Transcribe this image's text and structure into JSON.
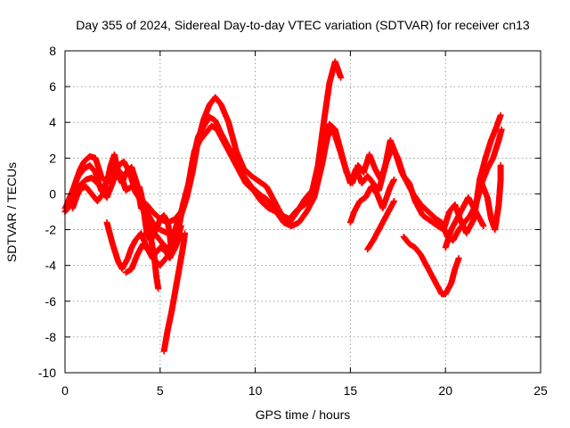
{
  "chart_data": {
    "type": "scatter",
    "title": "Day 355 of 2024, Sidereal Day-to-day VTEC variation (SDTVAR) for receiver cn13",
    "xlabel": "GPS time / hours",
    "ylabel": "SDTVAR / TECUs",
    "xlim": [
      0,
      25
    ],
    "ylim": [
      -10,
      8
    ],
    "xticks": [
      0,
      5,
      10,
      15,
      20,
      25
    ],
    "yticks": [
      -10,
      -8,
      -6,
      -4,
      -2,
      0,
      2,
      4,
      6,
      8
    ],
    "grid": true,
    "marker": "+",
    "color": "#ff0000",
    "series": [
      {
        "name": "track-1",
        "points": [
          [
            0.0,
            -1.0
          ],
          [
            0.3,
            -0.6
          ],
          [
            0.5,
            0.5
          ],
          [
            0.8,
            1.4
          ],
          [
            1.0,
            1.8
          ],
          [
            1.3,
            2.1
          ],
          [
            1.6,
            2.0
          ],
          [
            1.9,
            1.0
          ],
          [
            2.2,
            0.6
          ],
          [
            2.4,
            1.6
          ],
          [
            2.6,
            2.2
          ],
          [
            2.8,
            1.0
          ],
          [
            3.0,
            0.6
          ],
          [
            3.2,
            1.2
          ],
          [
            3.5,
            1.5
          ],
          [
            3.8,
            0.5
          ],
          [
            4.0,
            -0.8
          ],
          [
            4.3,
            -1.0
          ],
          [
            4.6,
            -1.6
          ],
          [
            5.0,
            -2.0
          ],
          [
            5.4,
            -2.2
          ],
          [
            5.8,
            -2.4
          ],
          [
            6.1,
            -1.2
          ],
          [
            6.4,
            -0.2
          ],
          [
            6.7,
            1.2
          ],
          [
            7.0,
            3.0
          ],
          [
            7.3,
            4.2
          ],
          [
            7.6,
            5.0
          ],
          [
            7.9,
            5.4
          ],
          [
            8.2,
            5.0
          ],
          [
            8.6,
            4.0
          ],
          [
            9.0,
            2.4
          ],
          [
            9.4,
            1.4
          ],
          [
            9.8,
            1.0
          ],
          [
            10.2,
            0.7
          ],
          [
            10.6,
            0.4
          ],
          [
            11.0,
            -0.4
          ],
          [
            11.4,
            -1.2
          ],
          [
            11.8,
            -1.4
          ],
          [
            12.2,
            -0.9
          ],
          [
            12.6,
            -0.6
          ],
          [
            13.0,
            0.2
          ],
          [
            13.3,
            1.6
          ],
          [
            13.6,
            4.0
          ],
          [
            13.9,
            6.2
          ],
          [
            14.2,
            7.4
          ],
          [
            14.5,
            6.5
          ]
        ]
      },
      {
        "name": "track-2",
        "points": [
          [
            0.1,
            -0.6
          ],
          [
            0.4,
            0.2
          ],
          [
            0.7,
            1.0
          ],
          [
            1.0,
            1.4
          ],
          [
            1.3,
            1.6
          ],
          [
            1.6,
            1.2
          ],
          [
            1.9,
            0.2
          ],
          [
            2.2,
            -0.2
          ],
          [
            2.5,
            0.6
          ],
          [
            2.8,
            1.6
          ],
          [
            3.1,
            1.8
          ],
          [
            3.4,
            1.2
          ],
          [
            3.7,
            0.1
          ],
          [
            4.0,
            -0.4
          ],
          [
            4.3,
            -0.6
          ],
          [
            4.6,
            -1.0
          ],
          [
            5.0,
            -1.4
          ],
          [
            5.4,
            -1.6
          ],
          [
            5.8,
            -1.4
          ],
          [
            6.1,
            -1.0
          ],
          [
            6.4,
            0.0
          ],
          [
            6.7,
            1.8
          ],
          [
            7.0,
            3.2
          ],
          [
            7.3,
            3.8
          ],
          [
            7.6,
            4.3
          ],
          [
            7.9,
            4.1
          ],
          [
            8.2,
            3.4
          ],
          [
            8.6,
            2.6
          ],
          [
            9.0,
            1.7
          ],
          [
            9.4,
            1.0
          ],
          [
            9.8,
            0.4
          ],
          [
            10.2,
            0.0
          ],
          [
            10.6,
            -0.3
          ],
          [
            11.0,
            -0.8
          ],
          [
            11.4,
            -1.4
          ],
          [
            11.8,
            -1.6
          ],
          [
            12.2,
            -1.0
          ],
          [
            12.6,
            -0.3
          ],
          [
            13.0,
            0.2
          ],
          [
            13.3,
            1.0
          ],
          [
            13.6,
            3.2
          ],
          [
            13.9,
            3.9
          ],
          [
            14.2,
            3.6
          ],
          [
            14.5,
            2.4
          ],
          [
            14.8,
            1.2
          ],
          [
            15.1,
            0.6
          ],
          [
            15.4,
            1.6
          ],
          [
            15.7,
            1.2
          ],
          [
            16.0,
            2.2
          ],
          [
            16.3,
            1.4
          ],
          [
            16.6,
            0.8
          ],
          [
            16.9,
            1.8
          ],
          [
            17.2,
            2.6
          ],
          [
            17.5,
            2.0
          ],
          [
            17.8,
            1.0
          ],
          [
            18.1,
            0.6
          ],
          [
            18.4,
            -0.4
          ],
          [
            18.8,
            -1.2
          ],
          [
            19.2,
            -1.5
          ],
          [
            19.6,
            -1.8
          ],
          [
            19.9,
            -2.0
          ],
          [
            20.2,
            -1.0
          ],
          [
            20.5,
            -0.6
          ],
          [
            20.8,
            -1.5
          ],
          [
            21.1,
            -2.2
          ],
          [
            21.5,
            -1.4
          ],
          [
            21.8,
            0.8
          ],
          [
            22.1,
            2.0
          ],
          [
            22.4,
            3.0
          ],
          [
            22.7,
            3.8
          ],
          [
            22.9,
            4.4
          ]
        ]
      },
      {
        "name": "track-3",
        "points": [
          [
            0.0,
            -0.8
          ],
          [
            0.2,
            -0.4
          ],
          [
            0.5,
            0.0
          ],
          [
            0.8,
            0.5
          ],
          [
            1.1,
            0.8
          ],
          [
            1.4,
            0.9
          ],
          [
            1.7,
            0.6
          ],
          [
            2.0,
            0.2
          ],
          [
            2.3,
            1.0
          ],
          [
            2.6,
            1.6
          ],
          [
            2.9,
            1.2
          ],
          [
            3.2,
            0.2
          ],
          [
            3.5,
            0.4
          ],
          [
            3.8,
            0.2
          ],
          [
            4.1,
            -0.4
          ],
          [
            4.4,
            -1.4
          ],
          [
            4.7,
            -2.2
          ],
          [
            5.0,
            -2.6
          ],
          [
            5.3,
            -3.0
          ],
          [
            5.6,
            -3.0
          ],
          [
            5.9,
            -2.4
          ],
          [
            6.2,
            -0.6
          ],
          [
            6.5,
            0.6
          ],
          [
            6.8,
            2.4
          ],
          [
            7.1,
            3.0
          ],
          [
            7.4,
            3.4
          ],
          [
            7.7,
            3.8
          ],
          [
            8.0,
            3.6
          ],
          [
            8.3,
            3.0
          ],
          [
            8.7,
            2.2
          ],
          [
            9.1,
            1.4
          ],
          [
            9.5,
            0.6
          ],
          [
            9.9,
            0.2
          ],
          [
            10.3,
            -0.4
          ],
          [
            10.7,
            -0.8
          ],
          [
            11.1,
            -1.0
          ],
          [
            11.5,
            -1.6
          ],
          [
            11.9,
            -1.8
          ],
          [
            12.3,
            -1.6
          ],
          [
            12.7,
            -1.0
          ],
          [
            13.1,
            -0.2
          ],
          [
            13.5,
            1.6
          ],
          [
            13.8,
            3.2
          ],
          [
            14.1,
            3.6
          ],
          [
            14.4,
            2.6
          ],
          [
            14.7,
            1.6
          ],
          [
            15.0,
            0.6
          ],
          [
            15.3,
            1.4
          ],
          [
            15.6,
            0.6
          ],
          [
            15.9,
            1.0
          ],
          [
            16.2,
            0.6
          ],
          [
            16.5,
            0.2
          ],
          [
            16.8,
            1.4
          ],
          [
            17.1,
            3.0
          ],
          [
            17.4,
            2.2
          ],
          [
            17.7,
            1.2
          ],
          [
            18.0,
            0.6
          ],
          [
            18.3,
            0.0
          ],
          [
            18.7,
            -0.6
          ],
          [
            19.1,
            -1.0
          ],
          [
            19.5,
            -1.4
          ],
          [
            19.8,
            -1.6
          ],
          [
            20.1,
            -2.4
          ],
          [
            20.4,
            -2.6
          ],
          [
            20.7,
            -2.0
          ],
          [
            21.0,
            -1.6
          ],
          [
            21.3,
            -1.2
          ],
          [
            21.6,
            -0.6
          ],
          [
            21.9,
            0.6
          ],
          [
            22.2,
            1.4
          ],
          [
            22.5,
            2.0
          ],
          [
            22.8,
            3.0
          ],
          [
            22.95,
            3.6
          ]
        ]
      },
      {
        "name": "track-4",
        "points": [
          [
            2.2,
            -1.6
          ],
          [
            2.5,
            -2.8
          ],
          [
            2.8,
            -3.8
          ],
          [
            3.0,
            -4.2
          ],
          [
            3.3,
            -3.6
          ],
          [
            3.5,
            -3.0
          ],
          [
            3.7,
            -2.6
          ],
          [
            4.0,
            -2.2
          ],
          [
            4.3,
            -3.0
          ],
          [
            4.6,
            -3.6
          ],
          [
            5.0,
            -4.0
          ],
          [
            5.3,
            -3.6
          ],
          [
            5.6,
            -3.2
          ],
          [
            5.9,
            -2.6
          ],
          [
            6.1,
            -1.8
          ]
        ]
      },
      {
        "name": "track-5",
        "points": [
          [
            3.2,
            -4.4
          ],
          [
            3.5,
            -4.2
          ],
          [
            3.8,
            -3.4
          ],
          [
            4.1,
            -2.8
          ],
          [
            4.4,
            -3.2
          ],
          [
            4.7,
            -3.4
          ],
          [
            5.0,
            -3.0
          ],
          [
            5.3,
            -3.2
          ],
          [
            5.5,
            -3.6
          ],
          [
            5.8,
            -3.0
          ],
          [
            6.0,
            -2.4
          ]
        ]
      },
      {
        "name": "track-6",
        "points": [
          [
            4.3,
            -1.2
          ],
          [
            4.5,
            -2.4
          ],
          [
            4.7,
            -3.6
          ],
          [
            4.8,
            -4.6
          ],
          [
            4.9,
            -5.3
          ]
        ]
      },
      {
        "name": "track-7",
        "points": [
          [
            5.2,
            -8.8
          ],
          [
            5.4,
            -7.6
          ],
          [
            5.6,
            -6.6
          ],
          [
            5.8,
            -5.4
          ],
          [
            6.0,
            -4.2
          ],
          [
            6.2,
            -3.0
          ],
          [
            6.3,
            -2.2
          ]
        ]
      },
      {
        "name": "track-8",
        "points": [
          [
            15.0,
            -1.6
          ],
          [
            15.2,
            -1.0
          ],
          [
            15.5,
            -0.4
          ],
          [
            15.8,
            -0.2
          ],
          [
            16.1,
            0.4
          ],
          [
            16.4,
            0.0
          ],
          [
            16.7,
            -0.8
          ],
          [
            16.9,
            -0.2
          ],
          [
            17.1,
            0.4
          ],
          [
            17.3,
            0.8
          ]
        ]
      },
      {
        "name": "track-9",
        "points": [
          [
            15.9,
            -3.1
          ],
          [
            16.2,
            -2.6
          ],
          [
            16.5,
            -2.0
          ],
          [
            16.8,
            -1.4
          ],
          [
            17.1,
            -0.8
          ],
          [
            17.3,
            -0.4
          ]
        ]
      },
      {
        "name": "track-10",
        "points": [
          [
            17.8,
            -2.4
          ],
          [
            18.1,
            -2.8
          ],
          [
            18.4,
            -3.0
          ],
          [
            18.7,
            -3.4
          ],
          [
            19.0,
            -4.0
          ],
          [
            19.3,
            -4.6
          ],
          [
            19.6,
            -5.2
          ],
          [
            19.8,
            -5.6
          ],
          [
            20.0,
            -5.6
          ],
          [
            20.3,
            -5.0
          ],
          [
            20.5,
            -4.2
          ],
          [
            20.7,
            -3.6
          ]
        ]
      },
      {
        "name": "track-11",
        "points": [
          [
            20.0,
            -3.0
          ],
          [
            20.3,
            -2.0
          ],
          [
            20.6,
            -1.4
          ],
          [
            20.9,
            -0.8
          ],
          [
            21.2,
            -0.2
          ],
          [
            21.5,
            -0.8
          ],
          [
            21.8,
            -1.4
          ],
          [
            22.0,
            -1.8
          ]
        ]
      },
      {
        "name": "track-12",
        "points": [
          [
            21.9,
            0.6
          ],
          [
            22.2,
            -0.2
          ],
          [
            22.4,
            -1.4
          ],
          [
            22.6,
            -2.0
          ],
          [
            22.8,
            -0.6
          ],
          [
            22.9,
            0.8
          ],
          [
            22.9,
            1.6
          ]
        ]
      },
      {
        "name": "track-13",
        "points": [
          [
            0.4,
            -0.8
          ],
          [
            0.6,
            -0.2
          ],
          [
            0.8,
            0.3
          ],
          [
            1.1,
            0.4
          ],
          [
            1.4,
            0.0
          ],
          [
            1.7,
            -0.4
          ],
          [
            2.0,
            0.0
          ],
          [
            2.2,
            0.4
          ]
        ]
      },
      {
        "name": "track-14",
        "points": [
          [
            6.0,
            -1.2
          ],
          [
            5.9,
            -1.6
          ],
          [
            5.8,
            -2.0
          ],
          [
            5.7,
            -2.8
          ],
          [
            5.6,
            -3.2
          ],
          [
            5.5,
            -2.2
          ],
          [
            5.4,
            -1.6
          ],
          [
            5.2,
            -1.2
          ],
          [
            5.0,
            -1.4
          ],
          [
            4.8,
            -2.0
          ],
          [
            4.5,
            -2.6
          ],
          [
            4.3,
            -2.2
          ],
          [
            4.2,
            -1.4
          ],
          [
            4.1,
            -0.6
          ],
          [
            4.0,
            0.0
          ],
          [
            3.9,
            0.4
          ]
        ]
      }
    ]
  }
}
